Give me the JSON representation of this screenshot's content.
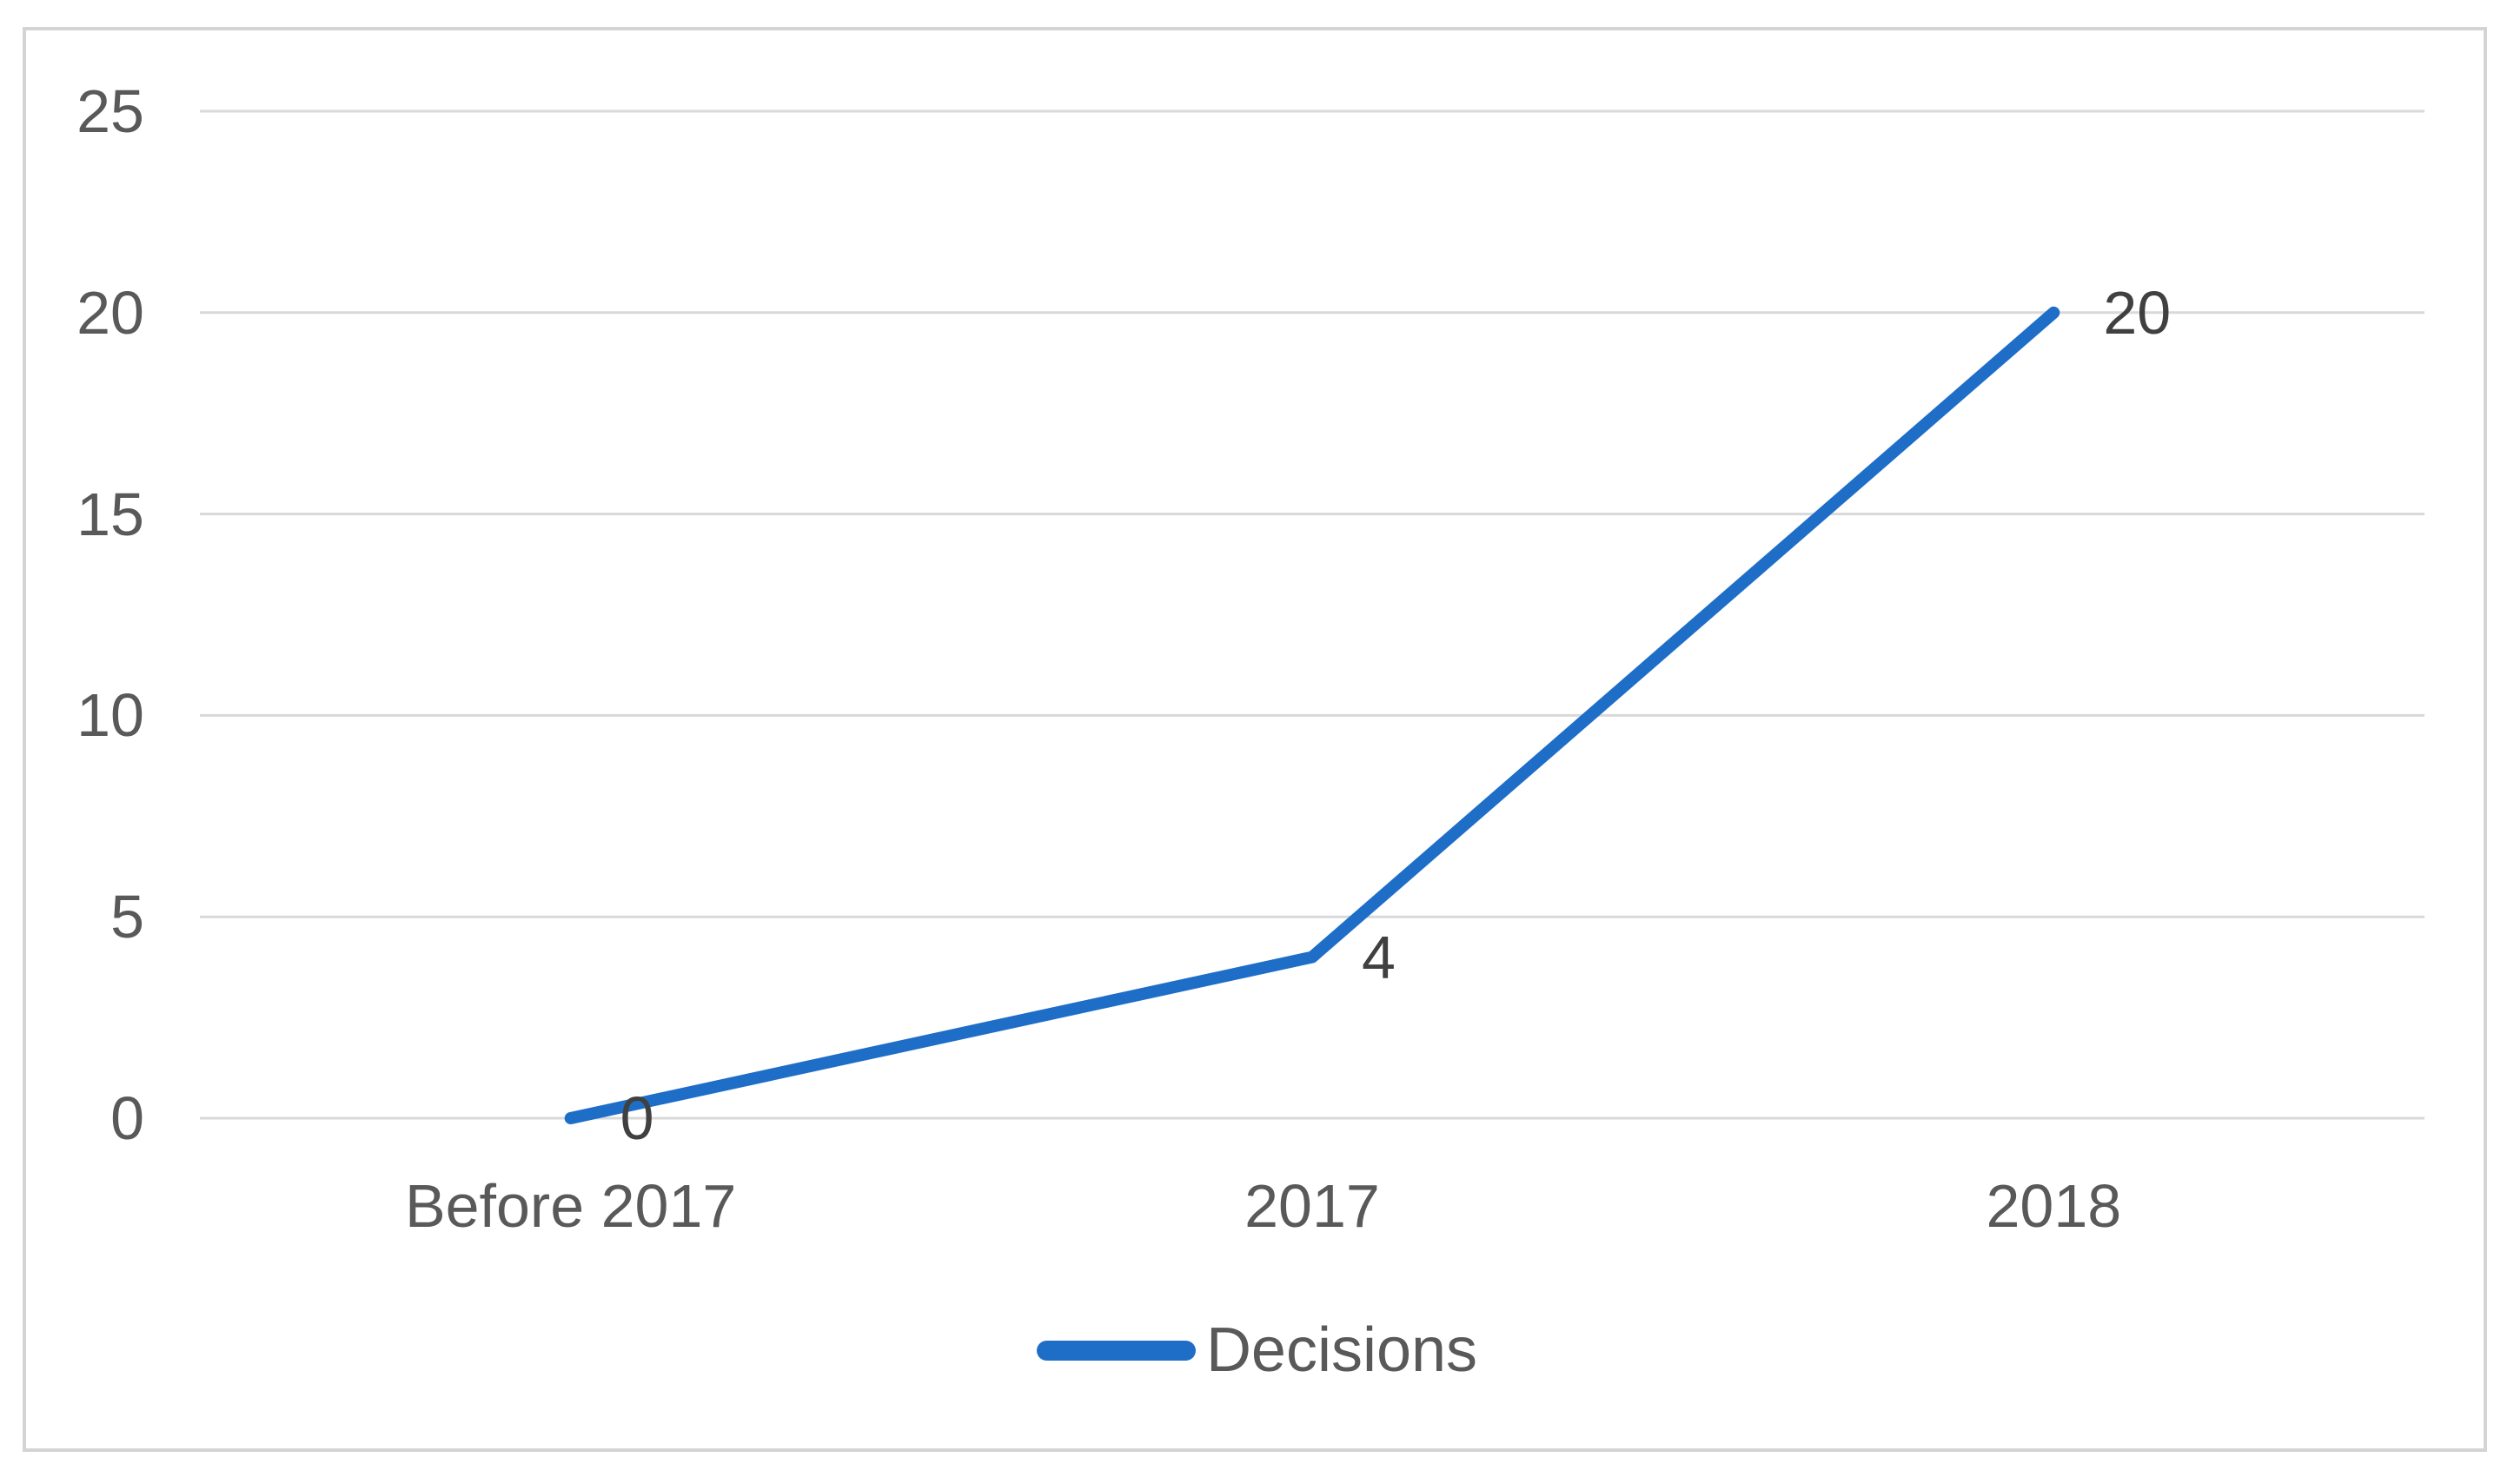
{
  "chart_data": {
    "type": "line",
    "title": "",
    "xlabel": "",
    "ylabel": "",
    "categories": [
      "Before 2017",
      "2017",
      "2018"
    ],
    "series": [
      {
        "name": "Decisions",
        "values": [
          0,
          4,
          20
        ],
        "data_labels": [
          "0",
          "4",
          "20"
        ],
        "color": "#1e6ec8"
      }
    ],
    "y_ticks": [
      0,
      5,
      10,
      15,
      20,
      25
    ],
    "ylim": [
      0,
      25
    ],
    "grid": true,
    "gridline_color": "#d9d9d9",
    "axis_text_color": "#595959",
    "data_label_color": "#404040",
    "frame_border_color": "#d4d4d4",
    "legend_position": "bottom",
    "legend": [
      {
        "label": "Decisions",
        "swatch_shape": "line",
        "swatch_color": "#1e6ec8"
      }
    ]
  }
}
